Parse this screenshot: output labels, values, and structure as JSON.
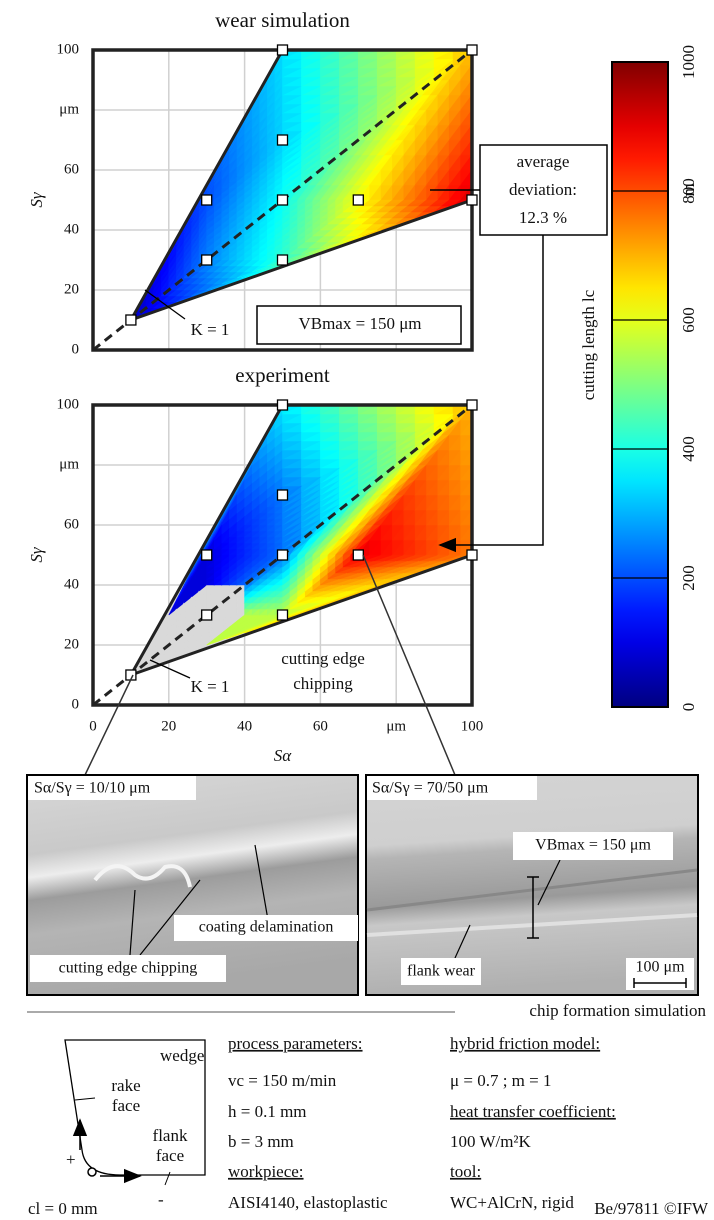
{
  "chart_data": [
    {
      "type": "contour",
      "title": "wear simulation",
      "ylabel": "Sγ",
      "x": [
        10,
        30,
        30,
        50,
        50,
        50,
        50,
        70,
        100,
        100
      ],
      "y": [
        10,
        30,
        50,
        30,
        50,
        70,
        100,
        50,
        50,
        100
      ],
      "z": [
        60,
        250,
        200,
        420,
        380,
        330,
        340,
        620,
        920,
        690
      ],
      "xlim": [
        0,
        100
      ],
      "ylim": [
        0,
        100
      ],
      "xticks": [
        0,
        20,
        40,
        60,
        80,
        100
      ],
      "show_xtick_labels": false,
      "yticks": [
        0,
        20,
        40,
        60,
        {
          "value": 80,
          "label": "μm"
        },
        100
      ],
      "grid": true,
      "annotations": [
        "K = 1",
        "VBmax = 150 μm"
      ]
    },
    {
      "type": "contour",
      "title": "experiment",
      "ylabel": "Sγ",
      "xlabel": "Sα",
      "x": [
        10,
        30,
        30,
        50,
        50,
        50,
        50,
        70,
        100,
        100
      ],
      "y": [
        10,
        30,
        50,
        30,
        50,
        70,
        100,
        50,
        50,
        100
      ],
      "z": [
        null,
        null,
        90,
        560,
        230,
        240,
        350,
        900,
        760,
        700
      ],
      "xlim": [
        0,
        100
      ],
      "ylim": [
        0,
        100
      ],
      "xticks": [
        0,
        20,
        40,
        60,
        {
          "value": 80,
          "label": "μm"
        },
        100
      ],
      "show_xtick_labels": true,
      "yticks": [
        0,
        20,
        40,
        60,
        {
          "value": 80,
          "label": "μm"
        },
        100
      ],
      "grid": true,
      "annotations": [
        "K = 1",
        "cutting edge",
        "chipping"
      ]
    }
  ],
  "colorbar": {
    "label": "cutting length lc",
    "unit": "m",
    "zlim": [
      0,
      1000
    ],
    "zticks": [
      0,
      200,
      400,
      600,
      800,
      1000
    ],
    "colormap": "jet"
  },
  "deviation": [
    "average",
    "deviation:",
    "12.3 %"
  ],
  "photos": [
    {
      "caption": "Sα/Sγ = 10/10 μm",
      "labels": [
        "coating delamination",
        "cutting edge chipping"
      ]
    },
    {
      "caption": "Sα/Sγ = 70/50 μm",
      "labels": [
        "VBmax = 150 μm",
        "flank wear",
        "100 μm"
      ]
    }
  ],
  "simulation": {
    "caption": "chip formation simulation",
    "wedge": [
      "wedge",
      "rake",
      "face",
      "flank",
      "face",
      "+",
      "-",
      "cl = 0 mm"
    ],
    "process": [
      "process parameters:",
      "vc = 150 m/min",
      "h = 0.1 mm",
      "b = 3 mm",
      "workpiece:",
      "AISI4140, elastoplastic"
    ],
    "model": [
      "hybrid friction model:",
      "μ = 0.7 ; m = 1",
      "heat transfer coefficient:",
      "100 W/m²K",
      "tool:",
      "WC+AlCrN, rigid"
    ],
    "footer": "Be/97811 ©IFW"
  }
}
